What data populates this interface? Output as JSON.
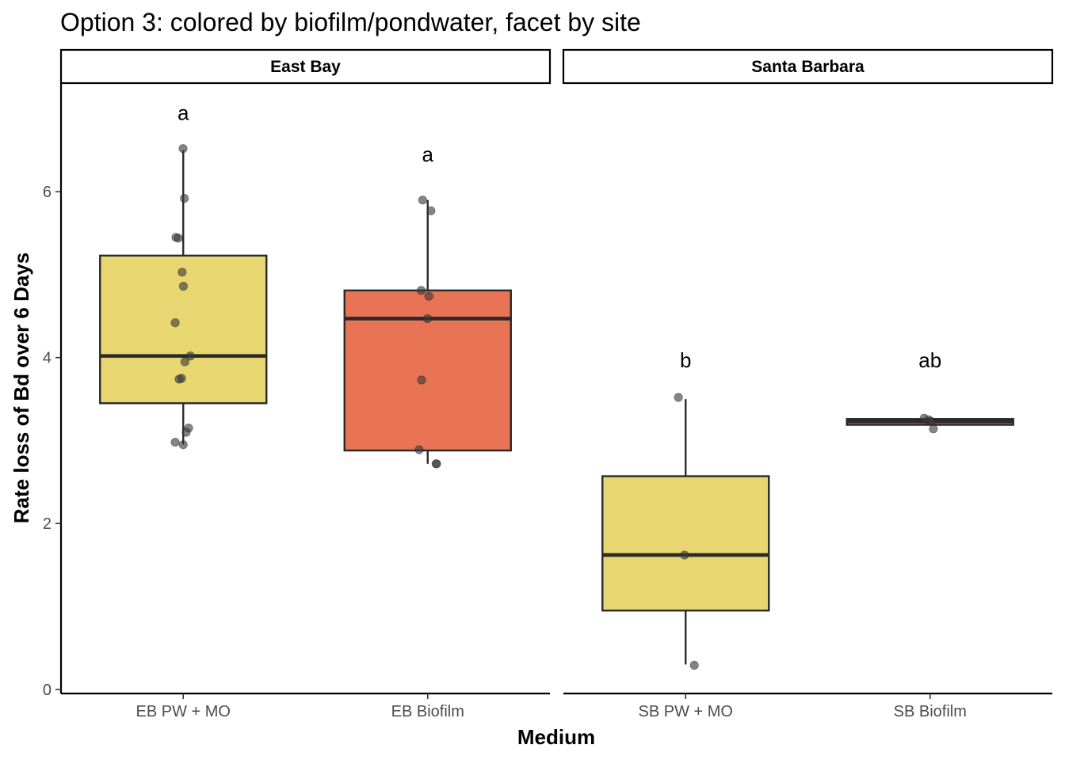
{
  "chart_data": {
    "type": "box",
    "title": "Option 3: colored by biofilm/pondwater, facet by site",
    "xlabel": "Medium",
    "ylabel": "Rate loss of Bd over 6 Days",
    "ylim": [
      -0.05,
      7.3
    ],
    "yticks": [
      0,
      2,
      4,
      6
    ],
    "grid": false,
    "legend": "none",
    "colors": {
      "pondwater": "#E8D770",
      "biofilm": "#E87355",
      "box_stroke": "#2a2a2a",
      "point": "#3a3a3a"
    },
    "facets": [
      {
        "name": "East Bay",
        "groups": [
          {
            "label": "EB PW + MO",
            "fill": "pondwater",
            "sig": "a",
            "sig_y": 6.95,
            "q1": 3.45,
            "median": 4.02,
            "q3": 5.23,
            "whisker_low": 2.95,
            "whisker_high": 6.5,
            "points": [
              6.52,
              5.92,
              5.45,
              5.44,
              5.03,
              4.86,
              4.42,
              4.02,
              3.95,
              3.75,
              3.74,
              3.15,
              3.1,
              2.98,
              2.95
            ]
          },
          {
            "label": "EB Biofilm",
            "fill": "biofilm",
            "sig": "a",
            "sig_y": 6.45,
            "q1": 2.88,
            "median": 4.47,
            "q3": 4.81,
            "whisker_low": 2.72,
            "whisker_high": 5.9,
            "points": [
              5.9,
              5.77,
              4.81,
              4.74,
              4.47,
              3.73,
              2.89,
              2.72,
              2.72
            ]
          }
        ]
      },
      {
        "name": "Santa Barbara",
        "groups": [
          {
            "label": "SB PW + MO",
            "fill": "pondwater",
            "sig": "b",
            "sig_y": 3.97,
            "q1": 0.95,
            "median": 1.62,
            "q3": 2.57,
            "whisker_low": 0.3,
            "whisker_high": 3.5,
            "points": [
              3.52,
              1.62,
              0.29
            ]
          },
          {
            "label": "SB Biofilm",
            "fill": "biofilm",
            "sig": "ab",
            "sig_y": 3.97,
            "q1": 3.19,
            "median": 3.23,
            "q3": 3.26,
            "whisker_low": 3.19,
            "whisker_high": 3.26,
            "points": [
              3.27,
              3.25,
              3.23,
              3.14
            ]
          }
        ]
      }
    ]
  }
}
